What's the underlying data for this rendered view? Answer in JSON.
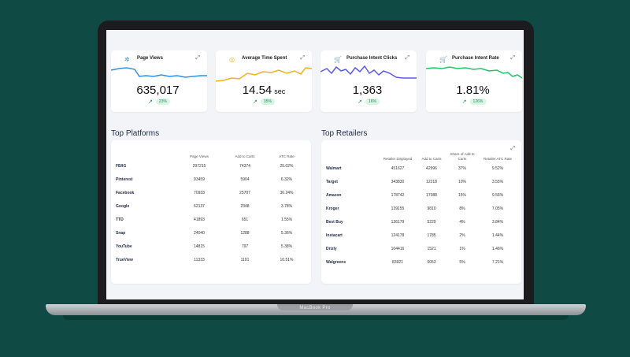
{
  "device": {
    "brand_label": "MacBook Pro"
  },
  "kpis": [
    {
      "title": "Page Views",
      "icon": "gear-icon",
      "value": "635,017",
      "unit": "",
      "badge": "23%",
      "color": "#2f8fe5"
    },
    {
      "title": "Average Time Spent",
      "icon": "bulb-icon",
      "value": "14.54",
      "unit": "sec",
      "badge": "35%",
      "color": "#f5b21a"
    },
    {
      "title": "Purchase Intent Clicks",
      "icon": "cart-icon",
      "value": "1,363",
      "unit": "",
      "badge": "16%",
      "color": "#5b5be8"
    },
    {
      "title": "Purchase Intent Rate",
      "icon": "cart-icon",
      "value": "1.81%",
      "unit": "",
      "badge": "126%",
      "color": "#22c468"
    }
  ],
  "platforms": {
    "title": "Top Platforms",
    "headers": [
      "Page Views",
      "Add to Carts",
      "ATC Rate"
    ],
    "rows": [
      {
        "name": "FB/IG",
        "views": "297215",
        "carts": "74374",
        "rate": "25.02%"
      },
      {
        "name": "Pinterest",
        "views": "93459",
        "carts": "5904",
        "rate": "6.32%"
      },
      {
        "name": "Facebook",
        "views": "70933",
        "carts": "25707",
        "rate": "36.24%"
      },
      {
        "name": "Google",
        "views": "62137",
        "carts": "2348",
        "rate": "3.78%"
      },
      {
        "name": "TTD",
        "views": "41893",
        "carts": "651",
        "rate": "1.55%"
      },
      {
        "name": "Snap",
        "views": "24040",
        "carts": "1288",
        "rate": "5.36%"
      },
      {
        "name": "YouTube",
        "views": "14815",
        "carts": "797",
        "rate": "5.38%"
      },
      {
        "name": "TrueView",
        "views": "11333",
        "carts": "1191",
        "rate": "10.51%"
      }
    ]
  },
  "retailers": {
    "title": "Top Retailers",
    "headers": [
      "Retailer Displayed",
      "Add to Carts",
      "Share of Add to Carts",
      "Retailer ATC Rate"
    ],
    "rows": [
      {
        "name": "Walmart",
        "displayed": "451627",
        "carts": "42996",
        "share": "37%",
        "rate": "9.52%"
      },
      {
        "name": "Target",
        "displayed": "343830",
        "carts": "12218",
        "share": "10%",
        "rate": "3.55%"
      },
      {
        "name": "Amazon",
        "displayed": "178742",
        "carts": "17088",
        "share": "15%",
        "rate": "9.56%"
      },
      {
        "name": "Kroger",
        "displayed": "139155",
        "carts": "9810",
        "share": "8%",
        "rate": "7.05%"
      },
      {
        "name": "Best Buy",
        "displayed": "136179",
        "carts": "5229",
        "share": "4%",
        "rate": "3.84%"
      },
      {
        "name": "Instacart",
        "displayed": "124178",
        "carts": "1785",
        "share": "2%",
        "rate": "1.44%"
      },
      {
        "name": "Drizly",
        "displayed": "104416",
        "carts": "1521",
        "share": "1%",
        "rate": "1.46%"
      },
      {
        "name": "Walgreens",
        "displayed": "83921",
        "carts": "6053",
        "share": "5%",
        "rate": "7.21%"
      }
    ]
  }
}
